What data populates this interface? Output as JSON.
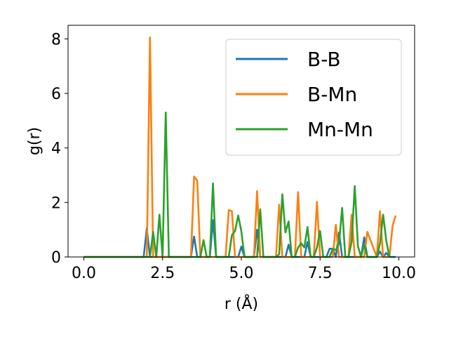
{
  "chart_data": {
    "type": "line",
    "title": "",
    "xlabel": "r (Å)",
    "ylabel": "g(r)",
    "xlim": [
      -0.5,
      10.5
    ],
    "ylim": [
      0,
      8.5
    ],
    "xticks": [
      0.0,
      2.5,
      5.0,
      7.5,
      10.0
    ],
    "xtick_labels": [
      "0.0",
      "2.5",
      "5.0",
      "7.5",
      "10.0"
    ],
    "yticks": [
      0,
      2,
      4,
      6,
      8
    ],
    "ytick_labels": [
      "0",
      "2",
      "4",
      "6",
      "8"
    ],
    "grid": false,
    "legend_position": "top-right",
    "series": [
      {
        "name": "B-B",
        "color": "#1f77b4",
        "x": [
          0,
          1.9,
          2.0,
          2.1,
          2.2,
          3.4,
          3.5,
          3.6,
          3.9,
          4.0,
          4.1,
          4.2,
          4.9,
          5.0,
          5.1,
          5.3,
          5.4,
          5.5,
          5.6,
          6.3,
          6.4,
          6.5,
          6.6,
          7.0,
          7.1,
          7.2,
          7.7,
          7.8,
          7.9,
          8.0,
          8.1,
          8.2,
          8.3,
          8.8,
          8.9,
          9.0,
          9.3,
          9.4,
          9.5,
          9.6,
          9.7,
          9.8,
          9.9
        ],
        "y": [
          0,
          0,
          1.05,
          0,
          0,
          0,
          0.75,
          0,
          0,
          0,
          1.35,
          0,
          0,
          0.38,
          0,
          0,
          0,
          1.0,
          0,
          0,
          0,
          0.45,
          0,
          0,
          0.55,
          0,
          0,
          0.3,
          0.3,
          0,
          0.9,
          0,
          0,
          0,
          0.72,
          0,
          0,
          0.2,
          0,
          0.15,
          0,
          0,
          0
        ]
      },
      {
        "name": "B-Mn",
        "color": "#ff7f0e",
        "x": [
          0,
          2.0,
          2.1,
          2.2,
          3.4,
          3.5,
          3.6,
          3.7,
          4.5,
          4.6,
          4.7,
          4.8,
          5.4,
          5.5,
          5.6,
          6.1,
          6.2,
          6.3,
          6.7,
          6.8,
          6.9,
          7.3,
          7.4,
          7.5,
          7.9,
          8.0,
          8.1,
          8.4,
          8.5,
          8.6,
          8.9,
          9.0,
          9.3,
          9.4,
          9.5,
          9.7,
          9.8,
          9.9
        ],
        "y": [
          0,
          0,
          8.05,
          0,
          0,
          2.95,
          2.8,
          0,
          0,
          1.72,
          1.68,
          0,
          0,
          2.42,
          0,
          0,
          1.92,
          0,
          0,
          2.38,
          0,
          0,
          2.02,
          0,
          0,
          1.18,
          0,
          0,
          1.55,
          0,
          0,
          0.92,
          0,
          1.68,
          0,
          0,
          1.15,
          1.52
        ]
      },
      {
        "name": "Mn-Mn",
        "color": "#2ca02c",
        "x": [
          0,
          2.1,
          2.2,
          2.3,
          2.4,
          2.5,
          2.6,
          2.7,
          3.7,
          3.8,
          3.9,
          4.0,
          4.1,
          4.2,
          4.6,
          4.7,
          4.8,
          4.9,
          5.0,
          5.1,
          5.5,
          5.6,
          5.7,
          6.1,
          6.2,
          6.3,
          6.4,
          6.5,
          6.6,
          6.7,
          6.8,
          6.9,
          7.0,
          7.1,
          7.2,
          7.3,
          7.4,
          7.5,
          7.6,
          7.8,
          7.9,
          8.0,
          8.1,
          8.2,
          8.3,
          8.4,
          8.5,
          8.6,
          8.7,
          8.8,
          8.9,
          9.0,
          9.3,
          9.4,
          9.5,
          9.6,
          9.7
        ],
        "y": [
          0,
          0,
          0.92,
          0,
          1.55,
          0,
          5.3,
          0,
          0,
          0.62,
          0,
          0,
          2.7,
          0,
          0,
          0.8,
          0.95,
          1.52,
          0.95,
          0,
          0,
          1.75,
          0,
          0,
          0.1,
          2.3,
          0.9,
          1.3,
          0,
          0,
          0.35,
          0.5,
          0.35,
          1.1,
          0,
          0,
          0.35,
          0.95,
          0,
          0,
          0.3,
          0.25,
          0.5,
          1.8,
          0,
          0,
          0.55,
          2.6,
          0.4,
          0,
          0.45,
          0,
          0,
          0.5,
          1.55,
          0.6,
          0
        ]
      }
    ]
  }
}
